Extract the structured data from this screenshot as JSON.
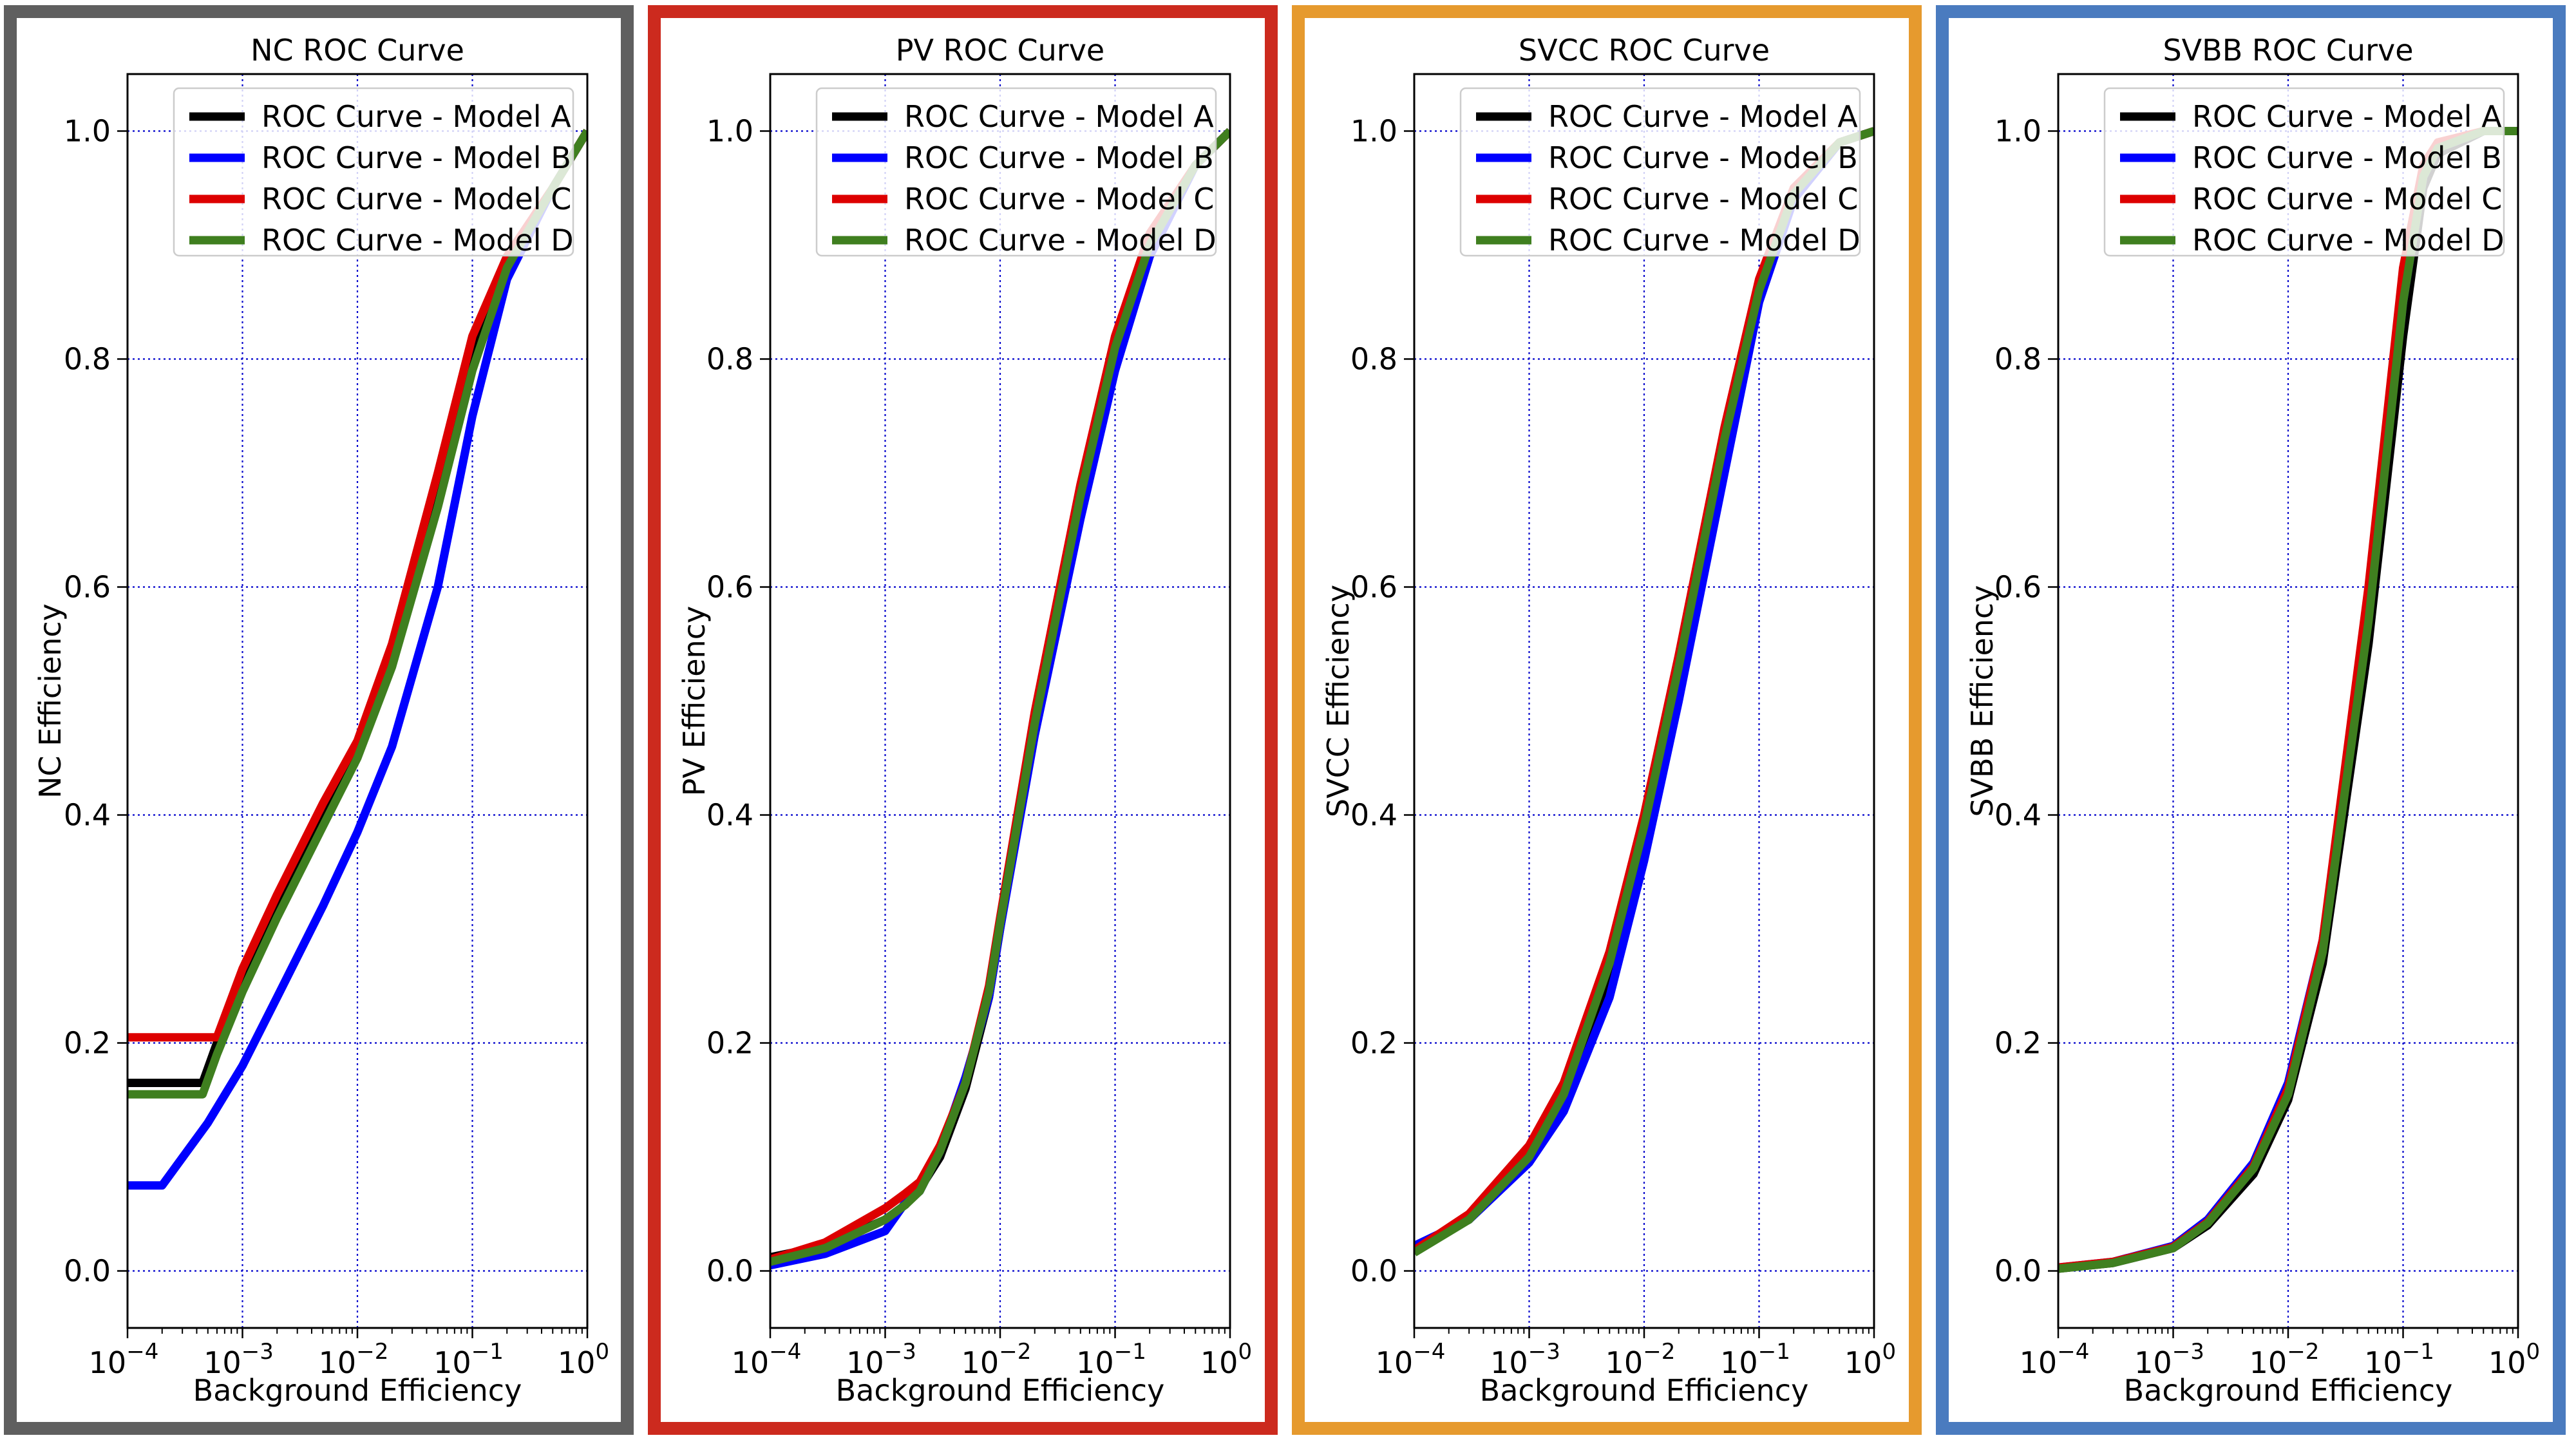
{
  "chart_data": [
    {
      "type": "line",
      "title": "NC ROC Curve",
      "xlabel": "Background Efficiency",
      "ylabel": "NC Efficiency",
      "xscale": "log",
      "xlim": [
        0.0001,
        1
      ],
      "ylim": [
        -0.05,
        1.05
      ],
      "xticks": [
        0.0001,
        0.001,
        0.01,
        0.1,
        1
      ],
      "xtick_labels": [
        {
          "base": "10",
          "exp": "−4"
        },
        {
          "base": "10",
          "exp": "−3"
        },
        {
          "base": "10",
          "exp": "−2"
        },
        {
          "base": "10",
          "exp": "−1"
        },
        {
          "base": "10",
          "exp": "0"
        }
      ],
      "yticks": [
        0.0,
        0.2,
        0.4,
        0.6,
        0.8,
        1.0
      ],
      "ytick_labels": [
        "0.0",
        "0.2",
        "0.4",
        "0.6",
        "0.8",
        "1.0"
      ],
      "grid": true,
      "legend_position": "top-right",
      "frame_color": "#5f5f5f",
      "series": [
        {
          "name": "ROC Curve - Model A",
          "color": "#000000",
          "x": [
            0.0001,
            0.00045,
            0.0006,
            0.001,
            0.002,
            0.005,
            0.01,
            0.02,
            0.05,
            0.1,
            0.2,
            0.5,
            1
          ],
          "y": [
            0.165,
            0.165,
            0.2,
            0.255,
            0.32,
            0.4,
            0.46,
            0.54,
            0.68,
            0.8,
            0.88,
            0.95,
            1.0
          ]
        },
        {
          "name": "ROC Curve - Model B",
          "color": "#0000ff",
          "x": [
            0.0001,
            0.0002,
            0.0005,
            0.001,
            0.002,
            0.005,
            0.01,
            0.02,
            0.05,
            0.1,
            0.2,
            0.5,
            1
          ],
          "y": [
            0.075,
            0.075,
            0.13,
            0.18,
            0.24,
            0.32,
            0.385,
            0.46,
            0.6,
            0.75,
            0.87,
            0.95,
            1.0
          ]
        },
        {
          "name": "ROC Curve - Model C",
          "color": "#dd0000",
          "x": [
            0.0001,
            0.0006,
            0.001,
            0.002,
            0.005,
            0.01,
            0.02,
            0.05,
            0.1,
            0.2,
            0.5,
            1
          ],
          "y": [
            0.205,
            0.205,
            0.265,
            0.33,
            0.41,
            0.465,
            0.55,
            0.7,
            0.82,
            0.89,
            0.95,
            1.0
          ]
        },
        {
          "name": "ROC Curve - Model D",
          "color": "#3f7f1f",
          "x": [
            0.0001,
            0.00045,
            0.0006,
            0.001,
            0.002,
            0.005,
            0.01,
            0.02,
            0.05,
            0.1,
            0.2,
            0.5,
            1
          ],
          "y": [
            0.155,
            0.155,
            0.19,
            0.245,
            0.31,
            0.39,
            0.45,
            0.53,
            0.67,
            0.79,
            0.88,
            0.95,
            1.0
          ]
        }
      ]
    },
    {
      "type": "line",
      "title": "PV ROC Curve",
      "xlabel": "Background Efficiency",
      "ylabel": "PV Efficiency",
      "xscale": "log",
      "xlim": [
        0.0001,
        1
      ],
      "ylim": [
        -0.05,
        1.05
      ],
      "xticks": [
        0.0001,
        0.001,
        0.01,
        0.1,
        1
      ],
      "xtick_labels": [
        {
          "base": "10",
          "exp": "−4"
        },
        {
          "base": "10",
          "exp": "−3"
        },
        {
          "base": "10",
          "exp": "−2"
        },
        {
          "base": "10",
          "exp": "−1"
        },
        {
          "base": "10",
          "exp": "0"
        }
      ],
      "yticks": [
        0.0,
        0.2,
        0.4,
        0.6,
        0.8,
        1.0
      ],
      "ytick_labels": [
        "0.0",
        "0.2",
        "0.4",
        "0.6",
        "0.8",
        "1.0"
      ],
      "grid": true,
      "legend_position": "top-right",
      "frame_color": "#cc2a1e",
      "series": [
        {
          "name": "ROC Curve - Model A",
          "color": "#000000",
          "x": [
            0.0001,
            0.0003,
            0.001,
            0.0015,
            0.002,
            0.003,
            0.005,
            0.008,
            0.01,
            0.02,
            0.05,
            0.1,
            0.2,
            0.5,
            1
          ],
          "y": [
            0.012,
            0.022,
            0.045,
            0.058,
            0.072,
            0.1,
            0.16,
            0.24,
            0.3,
            0.48,
            0.68,
            0.81,
            0.9,
            0.97,
            1.0
          ]
        },
        {
          "name": "ROC Curve - Model B",
          "color": "#0000ff",
          "x": [
            0.0001,
            0.0003,
            0.001,
            0.0015,
            0.002,
            0.003,
            0.005,
            0.008,
            0.01,
            0.02,
            0.05,
            0.1,
            0.2,
            0.5,
            1
          ],
          "y": [
            0.005,
            0.015,
            0.035,
            0.06,
            0.07,
            0.105,
            0.17,
            0.24,
            0.3,
            0.47,
            0.66,
            0.79,
            0.89,
            0.97,
            1.0
          ]
        },
        {
          "name": "ROC Curve - Model C",
          "color": "#dd0000",
          "x": [
            0.0001,
            0.0003,
            0.001,
            0.0015,
            0.002,
            0.003,
            0.005,
            0.008,
            0.01,
            0.02,
            0.05,
            0.1,
            0.2,
            0.5,
            1
          ],
          "y": [
            0.01,
            0.025,
            0.055,
            0.068,
            0.078,
            0.11,
            0.165,
            0.25,
            0.31,
            0.49,
            0.69,
            0.82,
            0.91,
            0.97,
            1.0
          ]
        },
        {
          "name": "ROC Curve - Model D",
          "color": "#3f7f1f",
          "x": [
            0.0001,
            0.0003,
            0.001,
            0.0015,
            0.002,
            0.003,
            0.005,
            0.008,
            0.01,
            0.02,
            0.05,
            0.1,
            0.2,
            0.5,
            1
          ],
          "y": [
            0.008,
            0.02,
            0.045,
            0.058,
            0.07,
            0.105,
            0.165,
            0.245,
            0.305,
            0.48,
            0.68,
            0.81,
            0.9,
            0.97,
            1.0
          ]
        }
      ]
    },
    {
      "type": "line",
      "title": "SVCC ROC Curve",
      "xlabel": "Background Efficiency",
      "ylabel": "SVCC Efficiency",
      "xscale": "log",
      "xlim": [
        0.0001,
        1
      ],
      "ylim": [
        -0.05,
        1.05
      ],
      "xticks": [
        0.0001,
        0.001,
        0.01,
        0.1,
        1
      ],
      "xtick_labels": [
        {
          "base": "10",
          "exp": "−4"
        },
        {
          "base": "10",
          "exp": "−3"
        },
        {
          "base": "10",
          "exp": "−2"
        },
        {
          "base": "10",
          "exp": "−1"
        },
        {
          "base": "10",
          "exp": "0"
        }
      ],
      "yticks": [
        0.0,
        0.2,
        0.4,
        0.6,
        0.8,
        1.0
      ],
      "ytick_labels": [
        "0.0",
        "0.2",
        "0.4",
        "0.6",
        "0.8",
        "1.0"
      ],
      "grid": true,
      "legend_position": "top-right",
      "frame_color": "#e69a2e",
      "series": [
        {
          "name": "ROC Curve - Model A",
          "color": "#000000",
          "x": [
            0.0001,
            0.0003,
            0.001,
            0.002,
            0.005,
            0.01,
            0.02,
            0.05,
            0.1,
            0.2,
            0.5,
            1
          ],
          "y": [
            0.02,
            0.045,
            0.1,
            0.15,
            0.26,
            0.38,
            0.52,
            0.72,
            0.86,
            0.94,
            0.99,
            1.0
          ]
        },
        {
          "name": "ROC Curve - Model B",
          "color": "#0000ff",
          "x": [
            0.0001,
            0.0003,
            0.001,
            0.002,
            0.005,
            0.01,
            0.02,
            0.05,
            0.1,
            0.2,
            0.5,
            1
          ],
          "y": [
            0.022,
            0.045,
            0.095,
            0.14,
            0.24,
            0.36,
            0.5,
            0.7,
            0.85,
            0.94,
            0.99,
            1.0
          ]
        },
        {
          "name": "ROC Curve - Model C",
          "color": "#dd0000",
          "x": [
            0.0001,
            0.0003,
            0.001,
            0.002,
            0.005,
            0.01,
            0.02,
            0.05,
            0.1,
            0.2,
            0.5,
            1
          ],
          "y": [
            0.018,
            0.05,
            0.11,
            0.165,
            0.28,
            0.4,
            0.54,
            0.74,
            0.87,
            0.95,
            0.99,
            1.0
          ]
        },
        {
          "name": "ROC Curve - Model D",
          "color": "#3f7f1f",
          "x": [
            0.0001,
            0.0003,
            0.001,
            0.002,
            0.005,
            0.01,
            0.02,
            0.05,
            0.1,
            0.2,
            0.5,
            1
          ],
          "y": [
            0.016,
            0.045,
            0.1,
            0.155,
            0.27,
            0.39,
            0.53,
            0.73,
            0.86,
            0.945,
            0.99,
            1.0
          ]
        }
      ]
    },
    {
      "type": "line",
      "title": "SVBB ROC Curve",
      "xlabel": "Background Efficiency",
      "ylabel": "SVBB Efficiency",
      "xscale": "log",
      "xlim": [
        0.0001,
        1
      ],
      "ylim": [
        -0.05,
        1.05
      ],
      "xticks": [
        0.0001,
        0.001,
        0.01,
        0.1,
        1
      ],
      "xtick_labels": [
        {
          "base": "10",
          "exp": "−4"
        },
        {
          "base": "10",
          "exp": "−3"
        },
        {
          "base": "10",
          "exp": "−2"
        },
        {
          "base": "10",
          "exp": "−1"
        },
        {
          "base": "10",
          "exp": "0"
        }
      ],
      "yticks": [
        0.0,
        0.2,
        0.4,
        0.6,
        0.8,
        1.0
      ],
      "ytick_labels": [
        "0.0",
        "0.2",
        "0.4",
        "0.6",
        "0.8",
        "1.0"
      ],
      "grid": true,
      "legend_position": "top-right",
      "frame_color": "#4a7bbf",
      "series": [
        {
          "name": "ROC Curve - Model A",
          "color": "#000000",
          "x": [
            0.0001,
            0.0003,
            0.001,
            0.002,
            0.005,
            0.01,
            0.02,
            0.05,
            0.1,
            0.15,
            0.2,
            0.5,
            1
          ],
          "y": [
            0.002,
            0.007,
            0.02,
            0.04,
            0.085,
            0.15,
            0.27,
            0.55,
            0.82,
            0.95,
            0.98,
            1.0,
            1.0
          ]
        },
        {
          "name": "ROC Curve - Model B",
          "color": "#0000ff",
          "x": [
            0.0001,
            0.0003,
            0.001,
            0.002,
            0.005,
            0.01,
            0.02,
            0.05,
            0.1,
            0.15,
            0.2,
            0.5,
            1
          ],
          "y": [
            0.003,
            0.008,
            0.022,
            0.045,
            0.095,
            0.165,
            0.29,
            0.58,
            0.85,
            0.96,
            0.985,
            1.0,
            1.0
          ]
        },
        {
          "name": "ROC Curve - Model C",
          "color": "#dd0000",
          "x": [
            0.0001,
            0.0003,
            0.001,
            0.002,
            0.005,
            0.01,
            0.02,
            0.05,
            0.1,
            0.15,
            0.2,
            0.5,
            1
          ],
          "y": [
            0.003,
            0.008,
            0.021,
            0.043,
            0.092,
            0.16,
            0.29,
            0.6,
            0.88,
            0.97,
            0.99,
            1.0,
            1.0
          ]
        },
        {
          "name": "ROC Curve - Model D",
          "color": "#3f7f1f",
          "x": [
            0.0001,
            0.0003,
            0.001,
            0.002,
            0.005,
            0.01,
            0.02,
            0.05,
            0.1,
            0.15,
            0.2,
            0.5,
            1
          ],
          "y": [
            0.002,
            0.007,
            0.02,
            0.042,
            0.09,
            0.155,
            0.28,
            0.57,
            0.85,
            0.96,
            0.985,
            1.0,
            1.0
          ]
        }
      ]
    }
  ]
}
